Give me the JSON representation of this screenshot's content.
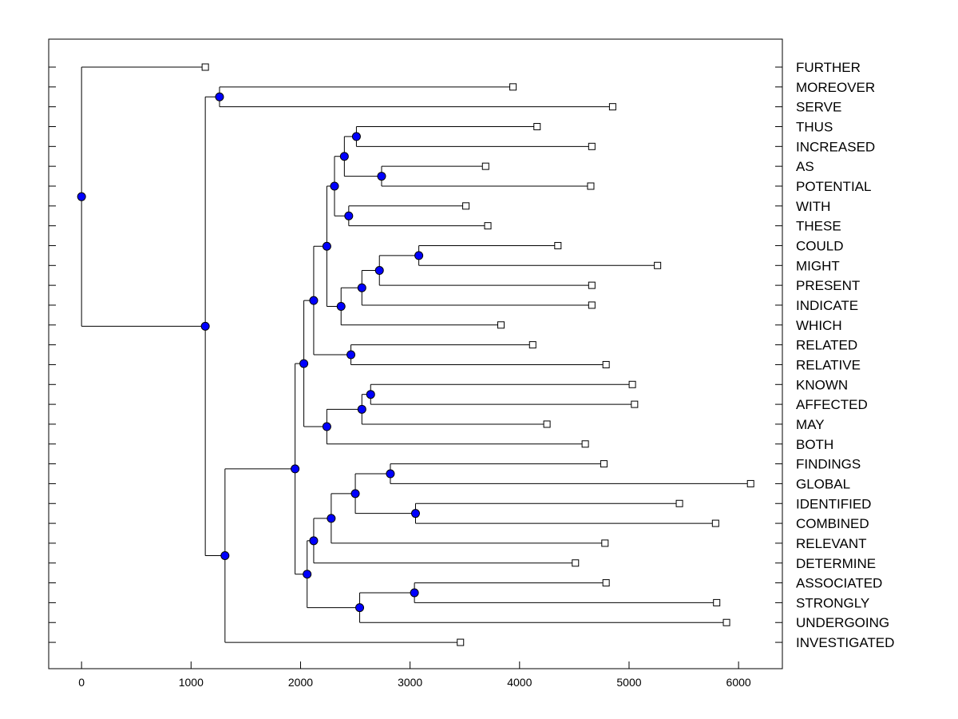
{
  "chart_data": {
    "type": "dendrogram",
    "title": "",
    "xlabel": "",
    "ylabel": "",
    "xlim": [
      -300,
      6400
    ],
    "x_ticks": [
      0,
      1000,
      2000,
      3000,
      4000,
      5000,
      6000
    ],
    "grid": false,
    "colors": {
      "node": "#0000ff",
      "line": "#000000",
      "leaf_fill": "#ffffff"
    },
    "leaves": [
      {
        "label": "FURTHER",
        "x": 1130
      },
      {
        "label": "MOREOVER",
        "x": 3940
      },
      {
        "label": "SERVE",
        "x": 4850
      },
      {
        "label": "THUS",
        "x": 4160
      },
      {
        "label": "INCREASED",
        "x": 4660
      },
      {
        "label": "AS",
        "x": 3690
      },
      {
        "label": "POTENTIAL",
        "x": 4650
      },
      {
        "label": "WITH",
        "x": 3510
      },
      {
        "label": "THESE",
        "x": 3710
      },
      {
        "label": "COULD",
        "x": 4350
      },
      {
        "label": "MIGHT",
        "x": 5260
      },
      {
        "label": "PRESENT",
        "x": 4660
      },
      {
        "label": "INDICATE",
        "x": 4660
      },
      {
        "label": "WHICH",
        "x": 3830
      },
      {
        "label": "RELATED",
        "x": 4120
      },
      {
        "label": "RELATIVE",
        "x": 4790
      },
      {
        "label": "KNOWN",
        "x": 5030
      },
      {
        "label": "AFFECTED",
        "x": 5050
      },
      {
        "label": "MAY",
        "x": 4250
      },
      {
        "label": "BOTH",
        "x": 4600
      },
      {
        "label": "FINDINGS",
        "x": 4770
      },
      {
        "label": "GLOBAL",
        "x": 6110
      },
      {
        "label": "IDENTIFIED",
        "x": 5460
      },
      {
        "label": "COMBINED",
        "x": 5790
      },
      {
        "label": "RELEVANT",
        "x": 4780
      },
      {
        "label": "DETERMINE",
        "x": 4510
      },
      {
        "label": "ASSOCIATED",
        "x": 4790
      },
      {
        "label": "STRONGLY",
        "x": 5800
      },
      {
        "label": "UNDERGOING",
        "x": 5890
      },
      {
        "label": "INVESTIGATED",
        "x": 3460
      }
    ],
    "merges": [
      {
        "id": "n1",
        "x": 1260,
        "children": [
          "L1",
          "L2"
        ]
      },
      {
        "id": "n2",
        "x": 2510,
        "children": [
          "L3",
          "L4"
        ]
      },
      {
        "id": "n3",
        "x": 2740,
        "children": [
          "L5",
          "L6"
        ]
      },
      {
        "id": "n4",
        "x": 2400,
        "children": [
          "n2",
          "n3"
        ]
      },
      {
        "id": "n5",
        "x": 2440,
        "children": [
          "L7",
          "L8"
        ]
      },
      {
        "id": "n6",
        "x": 2310,
        "children": [
          "n4",
          "n5"
        ]
      },
      {
        "id": "n7",
        "x": 3080,
        "children": [
          "L9",
          "L10"
        ]
      },
      {
        "id": "n8",
        "x": 2720,
        "children": [
          "n7",
          "L11"
        ]
      },
      {
        "id": "n9",
        "x": 2560,
        "children": [
          "n8",
          "L12"
        ]
      },
      {
        "id": "n10",
        "x": 2370,
        "children": [
          "n9",
          "L13"
        ]
      },
      {
        "id": "n11",
        "x": 2240,
        "children": [
          "n6",
          "n10"
        ]
      },
      {
        "id": "n12",
        "x": 2460,
        "children": [
          "L14",
          "L15"
        ]
      },
      {
        "id": "n13",
        "x": 2120,
        "children": [
          "n11",
          "n12"
        ]
      },
      {
        "id": "n14",
        "x": 2640,
        "children": [
          "L16",
          "L17"
        ]
      },
      {
        "id": "n15",
        "x": 2560,
        "children": [
          "n14",
          "L18"
        ]
      },
      {
        "id": "n16",
        "x": 2240,
        "children": [
          "n15",
          "L19"
        ]
      },
      {
        "id": "n17",
        "x": 2030,
        "children": [
          "n13",
          "n16"
        ]
      },
      {
        "id": "n18",
        "x": 2820,
        "children": [
          "L20",
          "L21"
        ]
      },
      {
        "id": "n19",
        "x": 3050,
        "children": [
          "L22",
          "L23"
        ]
      },
      {
        "id": "n20",
        "x": 2500,
        "children": [
          "n18",
          "n19"
        ]
      },
      {
        "id": "n21",
        "x": 2280,
        "children": [
          "n20",
          "L24"
        ]
      },
      {
        "id": "n22",
        "x": 2120,
        "children": [
          "n21",
          "L25"
        ]
      },
      {
        "id": "n23",
        "x": 3040,
        "children": [
          "L26",
          "L27"
        ]
      },
      {
        "id": "n24",
        "x": 2540,
        "children": [
          "n23",
          "L28"
        ]
      },
      {
        "id": "n25",
        "x": 2060,
        "children": [
          "n22",
          "n24"
        ]
      },
      {
        "id": "n26",
        "x": 1950,
        "children": [
          "n17",
          "n25"
        ]
      },
      {
        "id": "n27",
        "x": 1310,
        "children": [
          "n26",
          "L29"
        ]
      },
      {
        "id": "n28",
        "x": 1130,
        "children": [
          "n1",
          "n27"
        ]
      },
      {
        "id": "n29",
        "x": 0,
        "children": [
          "L0",
          "n28"
        ]
      }
    ]
  }
}
